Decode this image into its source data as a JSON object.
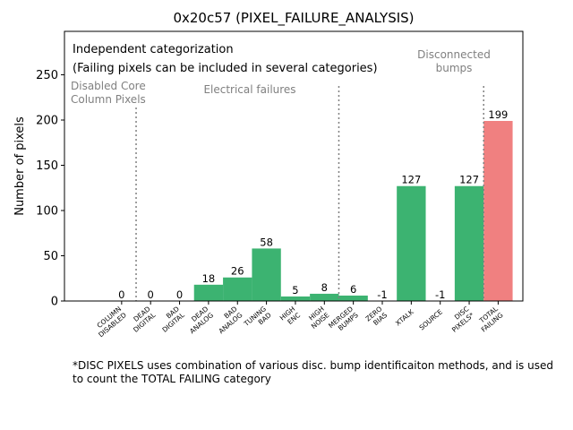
{
  "chart_data": {
    "type": "bar",
    "title": "0x20c57 (PIXEL_FAILURE_ANALYSIS)",
    "xlabel": "",
    "ylabel": "Number of pixels",
    "ylim": [
      0,
      298
    ],
    "yticks": [
      0,
      50,
      100,
      150,
      200,
      250
    ],
    "grid": false,
    "categories": [
      "COLUMN DISABLED",
      "DEAD DIGITAL",
      "BAD DIGITAL",
      "DEAD ANALOG",
      "BAD ANALOG",
      "TUNING BAD",
      "HIGH ENC",
      "HIGH NOISE",
      "MERGED BUMPS",
      "ZERO BIAS",
      "XTALK",
      "SOURCE",
      "DISC PIXELS*",
      "TOTAL FAILING"
    ],
    "tick_labels": [
      [
        "COLUMN",
        "DISABLED"
      ],
      [
        "DEAD",
        "DIGITAL"
      ],
      [
        "BAD",
        "DIGITAL"
      ],
      [
        "DEAD",
        "ANALOG"
      ],
      [
        "BAD",
        "ANALOG"
      ],
      [
        "TUNING",
        "BAD"
      ],
      [
        "HIGH",
        "ENC"
      ],
      [
        "HIGH",
        "NOISE"
      ],
      [
        "MERGED",
        "BUMPS"
      ],
      [
        "ZERO",
        "BIAS"
      ],
      [
        "XTALK"
      ],
      [
        "SOURCE"
      ],
      [
        "DISC",
        "PIXELS*"
      ],
      [
        "TOTAL",
        "FAILING"
      ]
    ],
    "values": [
      0,
      0,
      0,
      18,
      26,
      58,
      5,
      8,
      6,
      -1,
      127,
      -1,
      127,
      199
    ],
    "value_labels": [
      "0",
      "0",
      "0",
      "18",
      "26",
      "58",
      "5",
      "8",
      "6",
      "-1",
      "127",
      "-1",
      "127",
      "199"
    ],
    "colors": {
      "bar": "#3cb371",
      "total_bar": "#f08080",
      "separator": "#808080",
      "annotation": "#808080"
    },
    "separators_after_index": [
      0,
      7,
      12
    ],
    "annotations": {
      "header_line1": "Independent categorization",
      "header_line2": "(Failing pixels can be included in several categories)",
      "disabled_core": [
        "Disabled Core",
        "Column Pixels"
      ],
      "electrical": "Electrical failures",
      "disconnected": [
        "Disconnected",
        "bumps"
      ]
    }
  },
  "footnote": "*DISC PIXELS uses combination of various disc. bump identificaiton methods, and is used to count the TOTAL FAILING category"
}
